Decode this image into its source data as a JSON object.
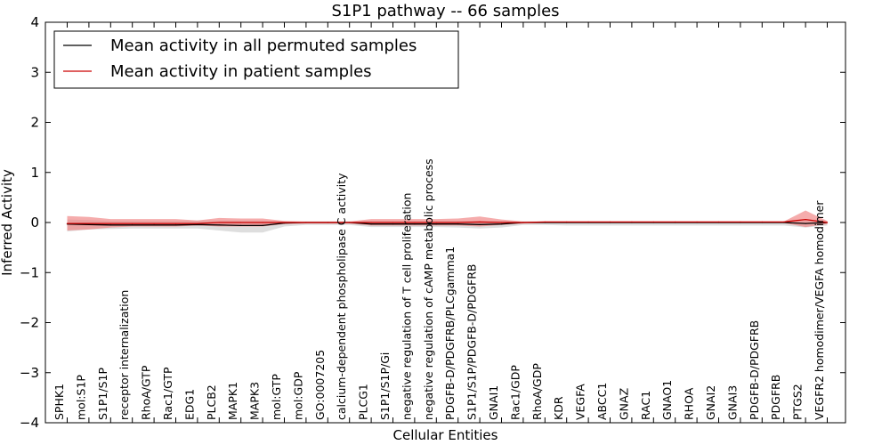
{
  "chart_data": {
    "type": "line",
    "title": "S1P1 pathway -- 66 samples",
    "xlabel": "Cellular Entities",
    "ylabel": "Inferred Activity",
    "ylim": [
      -4,
      4
    ],
    "yticks": [
      -4,
      -3,
      -2,
      -1,
      0,
      1,
      2,
      3,
      4
    ],
    "ytick_labels": [
      "−4",
      "−3",
      "−2",
      "−1",
      "0",
      "1",
      "2",
      "3",
      "4"
    ],
    "grid": false,
    "legend_position": "top-left",
    "categories": [
      "SPHK1",
      "mol:S1P",
      "S1P1/S1P",
      "receptor internalization",
      "RhoA/GTP",
      "Rac1/GTP",
      "EDG1",
      "PLCB2",
      "MAPK1",
      "MAPK3",
      "mol:GTP",
      "mol:GDP",
      "GO:0007205",
      "calcium-dependent phospholipase C activity",
      "PLCG1",
      "S1P1/S1P/Gi",
      "negative regulation of T cell proliferation",
      "negative regulation of cAMP metabolic process",
      "PDGFB-D/PDGFRB/PLCgamma1",
      "S1P1/S1P/PDGFB-D/PDGFRB",
      "GNAI1",
      "Rac1/GDP",
      "RhoA/GDP",
      "KDR",
      "VEGFA",
      "ABCC1",
      "GNAZ",
      "RAC1",
      "GNAO1",
      "RHOA",
      "GNAI2",
      "GNAI3",
      "PDGFB-D/PDGFRB",
      "PDGFRB",
      "PTGS2",
      "VEGFR2 homodimer/VEGFA homodimer"
    ],
    "series": [
      {
        "name": "Mean activity in all permuted samples",
        "color": "#000000",
        "band_color": "#c8c8c8",
        "values": [
          -0.03,
          -0.04,
          -0.05,
          -0.05,
          -0.05,
          -0.05,
          -0.04,
          -0.05,
          -0.06,
          -0.06,
          -0.01,
          0.0,
          0.0,
          0.0,
          -0.03,
          -0.03,
          -0.03,
          -0.03,
          -0.03,
          -0.04,
          -0.03,
          0.0,
          0.0,
          0.0,
          0.0,
          0.0,
          0.0,
          0.0,
          0.0,
          0.0,
          0.0,
          0.0,
          0.0,
          0.0,
          -0.02,
          0.0
        ],
        "lower": [
          -0.18,
          -0.14,
          -0.13,
          -0.12,
          -0.12,
          -0.12,
          -0.12,
          -0.16,
          -0.2,
          -0.2,
          -0.08,
          -0.05,
          -0.05,
          -0.05,
          -0.09,
          -0.09,
          -0.09,
          -0.09,
          -0.1,
          -0.12,
          -0.1,
          -0.05,
          -0.05,
          -0.06,
          -0.06,
          -0.06,
          -0.06,
          -0.06,
          -0.06,
          -0.06,
          -0.06,
          -0.06,
          -0.06,
          -0.06,
          -0.1,
          -0.06
        ],
        "upper": [
          0.06,
          0.05,
          0.03,
          0.03,
          0.03,
          0.03,
          0.04,
          0.04,
          0.04,
          0.04,
          0.02,
          0.02,
          0.02,
          0.02,
          0.03,
          0.03,
          0.03,
          0.03,
          0.03,
          0.03,
          0.03,
          0.02,
          0.02,
          0.02,
          0.02,
          0.02,
          0.02,
          0.02,
          0.02,
          0.02,
          0.02,
          0.02,
          0.02,
          0.02,
          0.04,
          0.02
        ]
      },
      {
        "name": "Mean activity in patient samples",
        "color": "#cc0000",
        "band_color": "#f08080",
        "values": [
          -0.02,
          -0.02,
          -0.02,
          -0.02,
          -0.02,
          -0.02,
          -0.02,
          0.0,
          0.0,
          0.0,
          0.0,
          0.0,
          0.0,
          0.0,
          0.0,
          0.0,
          0.0,
          0.0,
          0.0,
          0.01,
          0.0,
          0.0,
          0.01,
          0.01,
          0.01,
          0.01,
          0.01,
          0.01,
          0.01,
          0.01,
          0.01,
          0.01,
          0.01,
          0.01,
          0.06,
          0.0
        ],
        "lower": [
          -0.16,
          -0.14,
          -0.1,
          -0.08,
          -0.08,
          -0.08,
          -0.06,
          -0.08,
          -0.08,
          -0.08,
          -0.03,
          -0.02,
          -0.02,
          -0.02,
          -0.06,
          -0.06,
          -0.06,
          -0.06,
          -0.06,
          -0.08,
          -0.05,
          -0.02,
          -0.01,
          -0.01,
          -0.01,
          -0.01,
          -0.01,
          -0.01,
          -0.01,
          -0.01,
          -0.01,
          -0.01,
          -0.01,
          -0.01,
          -0.09,
          -0.03
        ],
        "upper": [
          0.13,
          0.11,
          0.07,
          0.07,
          0.07,
          0.07,
          0.04,
          0.09,
          0.08,
          0.08,
          0.03,
          0.02,
          0.02,
          0.02,
          0.07,
          0.07,
          0.07,
          0.07,
          0.08,
          0.12,
          0.06,
          0.02,
          0.02,
          0.02,
          0.02,
          0.02,
          0.02,
          0.02,
          0.02,
          0.02,
          0.02,
          0.02,
          0.02,
          0.02,
          0.24,
          0.03
        ]
      }
    ]
  }
}
